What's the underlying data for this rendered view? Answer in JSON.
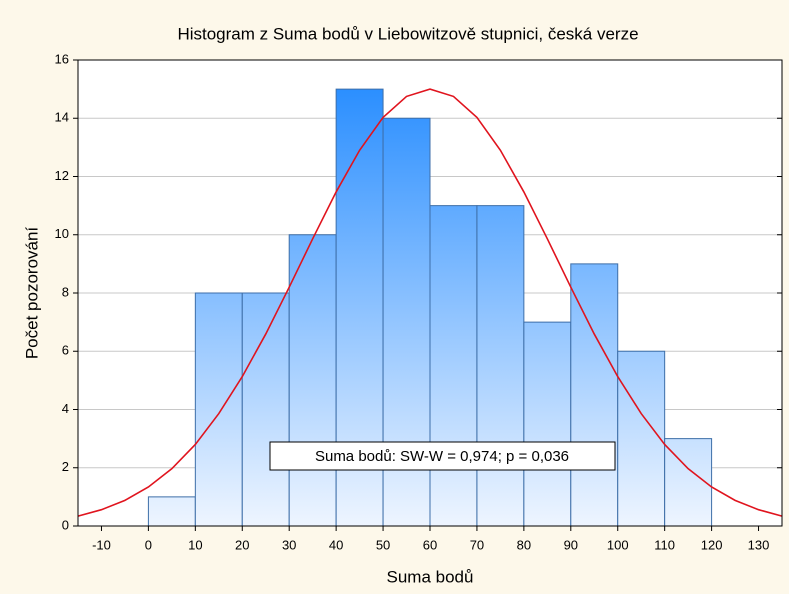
{
  "chart_data": {
    "type": "histogram",
    "title": "Histogram z Suma bodů v Liebowitzově stupnici, česká verze",
    "x_label": "Suma bodů",
    "y_label": "Počet pozorování",
    "annotation": "Suma bodů: SW-W = 0,974; p = 0,036",
    "bins": [
      0,
      10,
      20,
      30,
      40,
      50,
      60,
      70,
      80,
      90,
      100,
      110,
      120
    ],
    "values": [
      1,
      8,
      8,
      10,
      15,
      14,
      11,
      11,
      7,
      9,
      6,
      3
    ],
    "xlim": [
      -15,
      135
    ],
    "ylim": [
      0,
      16
    ],
    "xticks": [
      -10,
      0,
      10,
      20,
      30,
      40,
      50,
      60,
      70,
      80,
      90,
      100,
      110,
      120,
      130
    ],
    "yticks": [
      0,
      2,
      4,
      6,
      8,
      10,
      12,
      14,
      16
    ],
    "grid": true,
    "color": "#1e88ff",
    "curve_color": "#e0141e",
    "curve": {
      "x": [
        -15,
        -10,
        -5,
        0,
        5,
        10,
        15,
        20,
        25,
        30,
        35,
        40,
        45,
        50,
        55,
        60,
        65,
        70,
        75,
        80,
        85,
        90,
        95,
        100,
        105,
        110,
        115,
        120,
        125,
        130,
        135
      ],
      "y": [
        0.34,
        0.56,
        0.88,
        1.34,
        1.97,
        2.8,
        3.86,
        5.13,
        6.59,
        8.2,
        9.86,
        11.47,
        12.9,
        14.03,
        14.75,
        15,
        14.75,
        14.03,
        12.9,
        11.47,
        9.86,
        8.2,
        6.59,
        5.13,
        3.86,
        2.8,
        1.97,
        1.34,
        0.88,
        0.56,
        0.34
      ]
    }
  }
}
